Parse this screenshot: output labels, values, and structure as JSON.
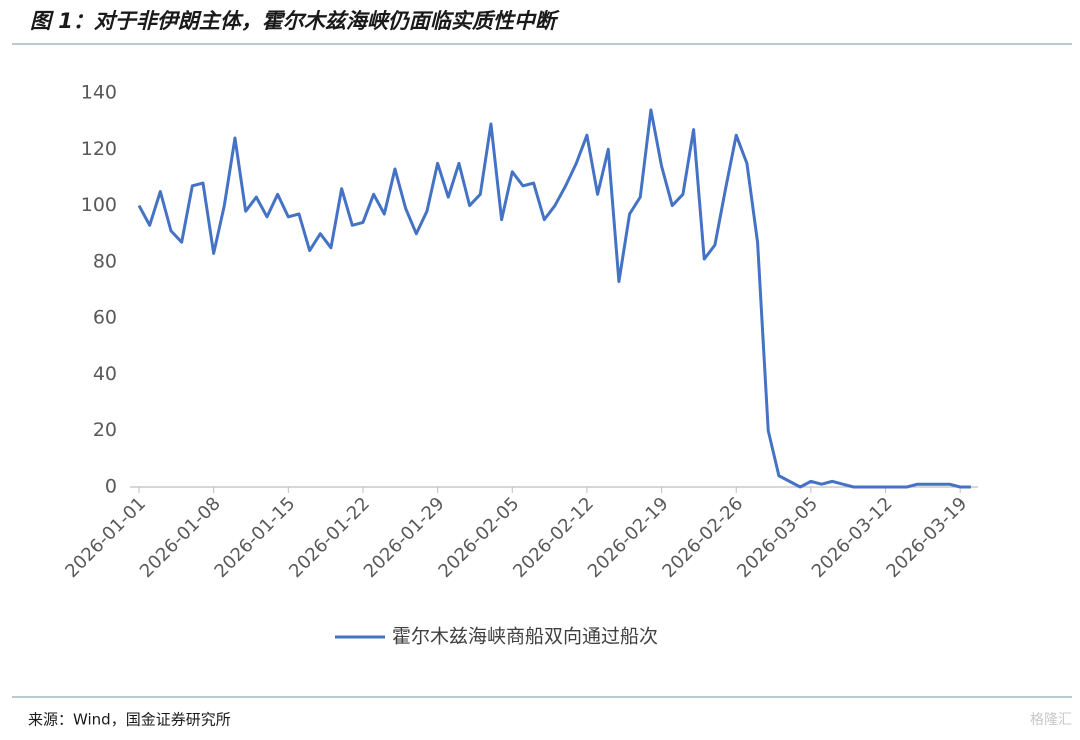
{
  "header": {
    "title": "图 1：对于非伊朗主体，霍尔木兹海峡仍面临实质性中断"
  },
  "chart_data": {
    "type": "line",
    "categories": [
      "2026-01-01",
      null,
      null,
      null,
      null,
      null,
      null,
      "2026-01-08",
      null,
      null,
      null,
      null,
      null,
      null,
      "2026-01-15",
      null,
      null,
      null,
      null,
      null,
      null,
      "2026-01-22",
      null,
      null,
      null,
      null,
      null,
      null,
      "2026-01-29",
      null,
      null,
      null,
      null,
      null,
      null,
      "2026-02-05",
      null,
      null,
      null,
      null,
      null,
      null,
      "2026-02-12",
      null,
      null,
      null,
      null,
      null,
      null,
      "2026-02-19",
      null,
      null,
      null,
      null,
      null,
      null,
      "2026-02-26",
      null,
      null,
      null,
      null,
      null,
      null,
      "2026-03-05",
      null,
      null,
      null,
      null,
      null,
      null,
      "2026-03-12",
      null,
      null,
      null,
      null,
      null,
      null,
      "2026-03-19",
      null
    ],
    "series": [
      {
        "name": "霍尔木兹海峡商船双向通过船次",
        "color": "#4472c4",
        "values": [
          100,
          93,
          105,
          91,
          87,
          107,
          108,
          83,
          100,
          124,
          98,
          103,
          96,
          104,
          96,
          97,
          84,
          90,
          85,
          106,
          93,
          94,
          104,
          97,
          113,
          99,
          90,
          98,
          115,
          103,
          115,
          100,
          104,
          129,
          95,
          112,
          107,
          108,
          95,
          100,
          107,
          115,
          125,
          104,
          120,
          73,
          97,
          103,
          134,
          114,
          100,
          104,
          127,
          81,
          86,
          106,
          125,
          115,
          87,
          20,
          4,
          2,
          0,
          2,
          1,
          2,
          1,
          0,
          0,
          0,
          0,
          0,
          0,
          1,
          1,
          1,
          1,
          0,
          0
        ]
      }
    ],
    "ylim": [
      0,
      140
    ],
    "yticks": [
      0,
      20,
      40,
      60,
      80,
      100,
      120,
      140
    ],
    "grid": false,
    "legend": "bottom"
  },
  "footer": {
    "source": "来源：Wind，国金证券研究所",
    "watermark": "格隆汇"
  }
}
